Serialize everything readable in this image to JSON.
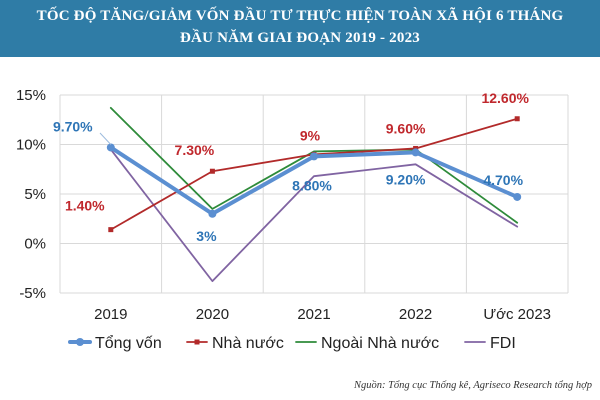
{
  "header": {
    "title_line1": "TỐC ĐỘ TĂNG/GIẢM VỐN ĐẦU TƯ THỰC HIỆN TOÀN XÃ HỘI 6 THÁNG",
    "title_line2": "ĐẦU NĂM GIAI ĐOẠN 2019 - 2023",
    "background": "#2f7ca6"
  },
  "source": "Nguồn: Tổng cục Thống kê, Agriseco Research tổng hợp",
  "chart_data": {
    "type": "line",
    "title": "TỐC ĐỘ TĂNG/GIẢM VỐN ĐẦU TƯ THỰC HIỆN TOÀN XÃ HỘI 6 THÁNG ĐẦU NĂM GIAI ĐOẠN 2019 - 2023",
    "categories": [
      "2019",
      "2020",
      "2021",
      "2022",
      "Ước 2023"
    ],
    "yticks": [
      "15%",
      "10%",
      "5%",
      "0%",
      "-5%"
    ],
    "ylim": [
      -5,
      15
    ],
    "grid": true,
    "legend_position": "bottom",
    "series": [
      {
        "name": "Tổng vốn",
        "values": [
          9.7,
          3.0,
          8.8,
          9.2,
          4.7
        ],
        "color": "#5b8fd1",
        "labels": [
          "9.70%",
          "3%",
          "8.80%",
          "9.20%",
          "4.70%"
        ],
        "label_color": "#2e75b6"
      },
      {
        "name": "Nhà nước",
        "values": [
          1.4,
          7.3,
          9.0,
          9.6,
          12.6
        ],
        "color": "#b22a2a",
        "labels": [
          "1.40%",
          "7.30%",
          "9%",
          "9.60%",
          "12.60%"
        ],
        "label_color": "#c0282d"
      },
      {
        "name": "Ngoài Nhà nước",
        "values": [
          13.7,
          3.5,
          9.3,
          9.5,
          2.1
        ],
        "color": "#2e8b3a"
      },
      {
        "name": "FDI",
        "values": [
          9.5,
          -3.8,
          6.8,
          8.0,
          1.7
        ],
        "color": "#8064a2"
      }
    ]
  }
}
